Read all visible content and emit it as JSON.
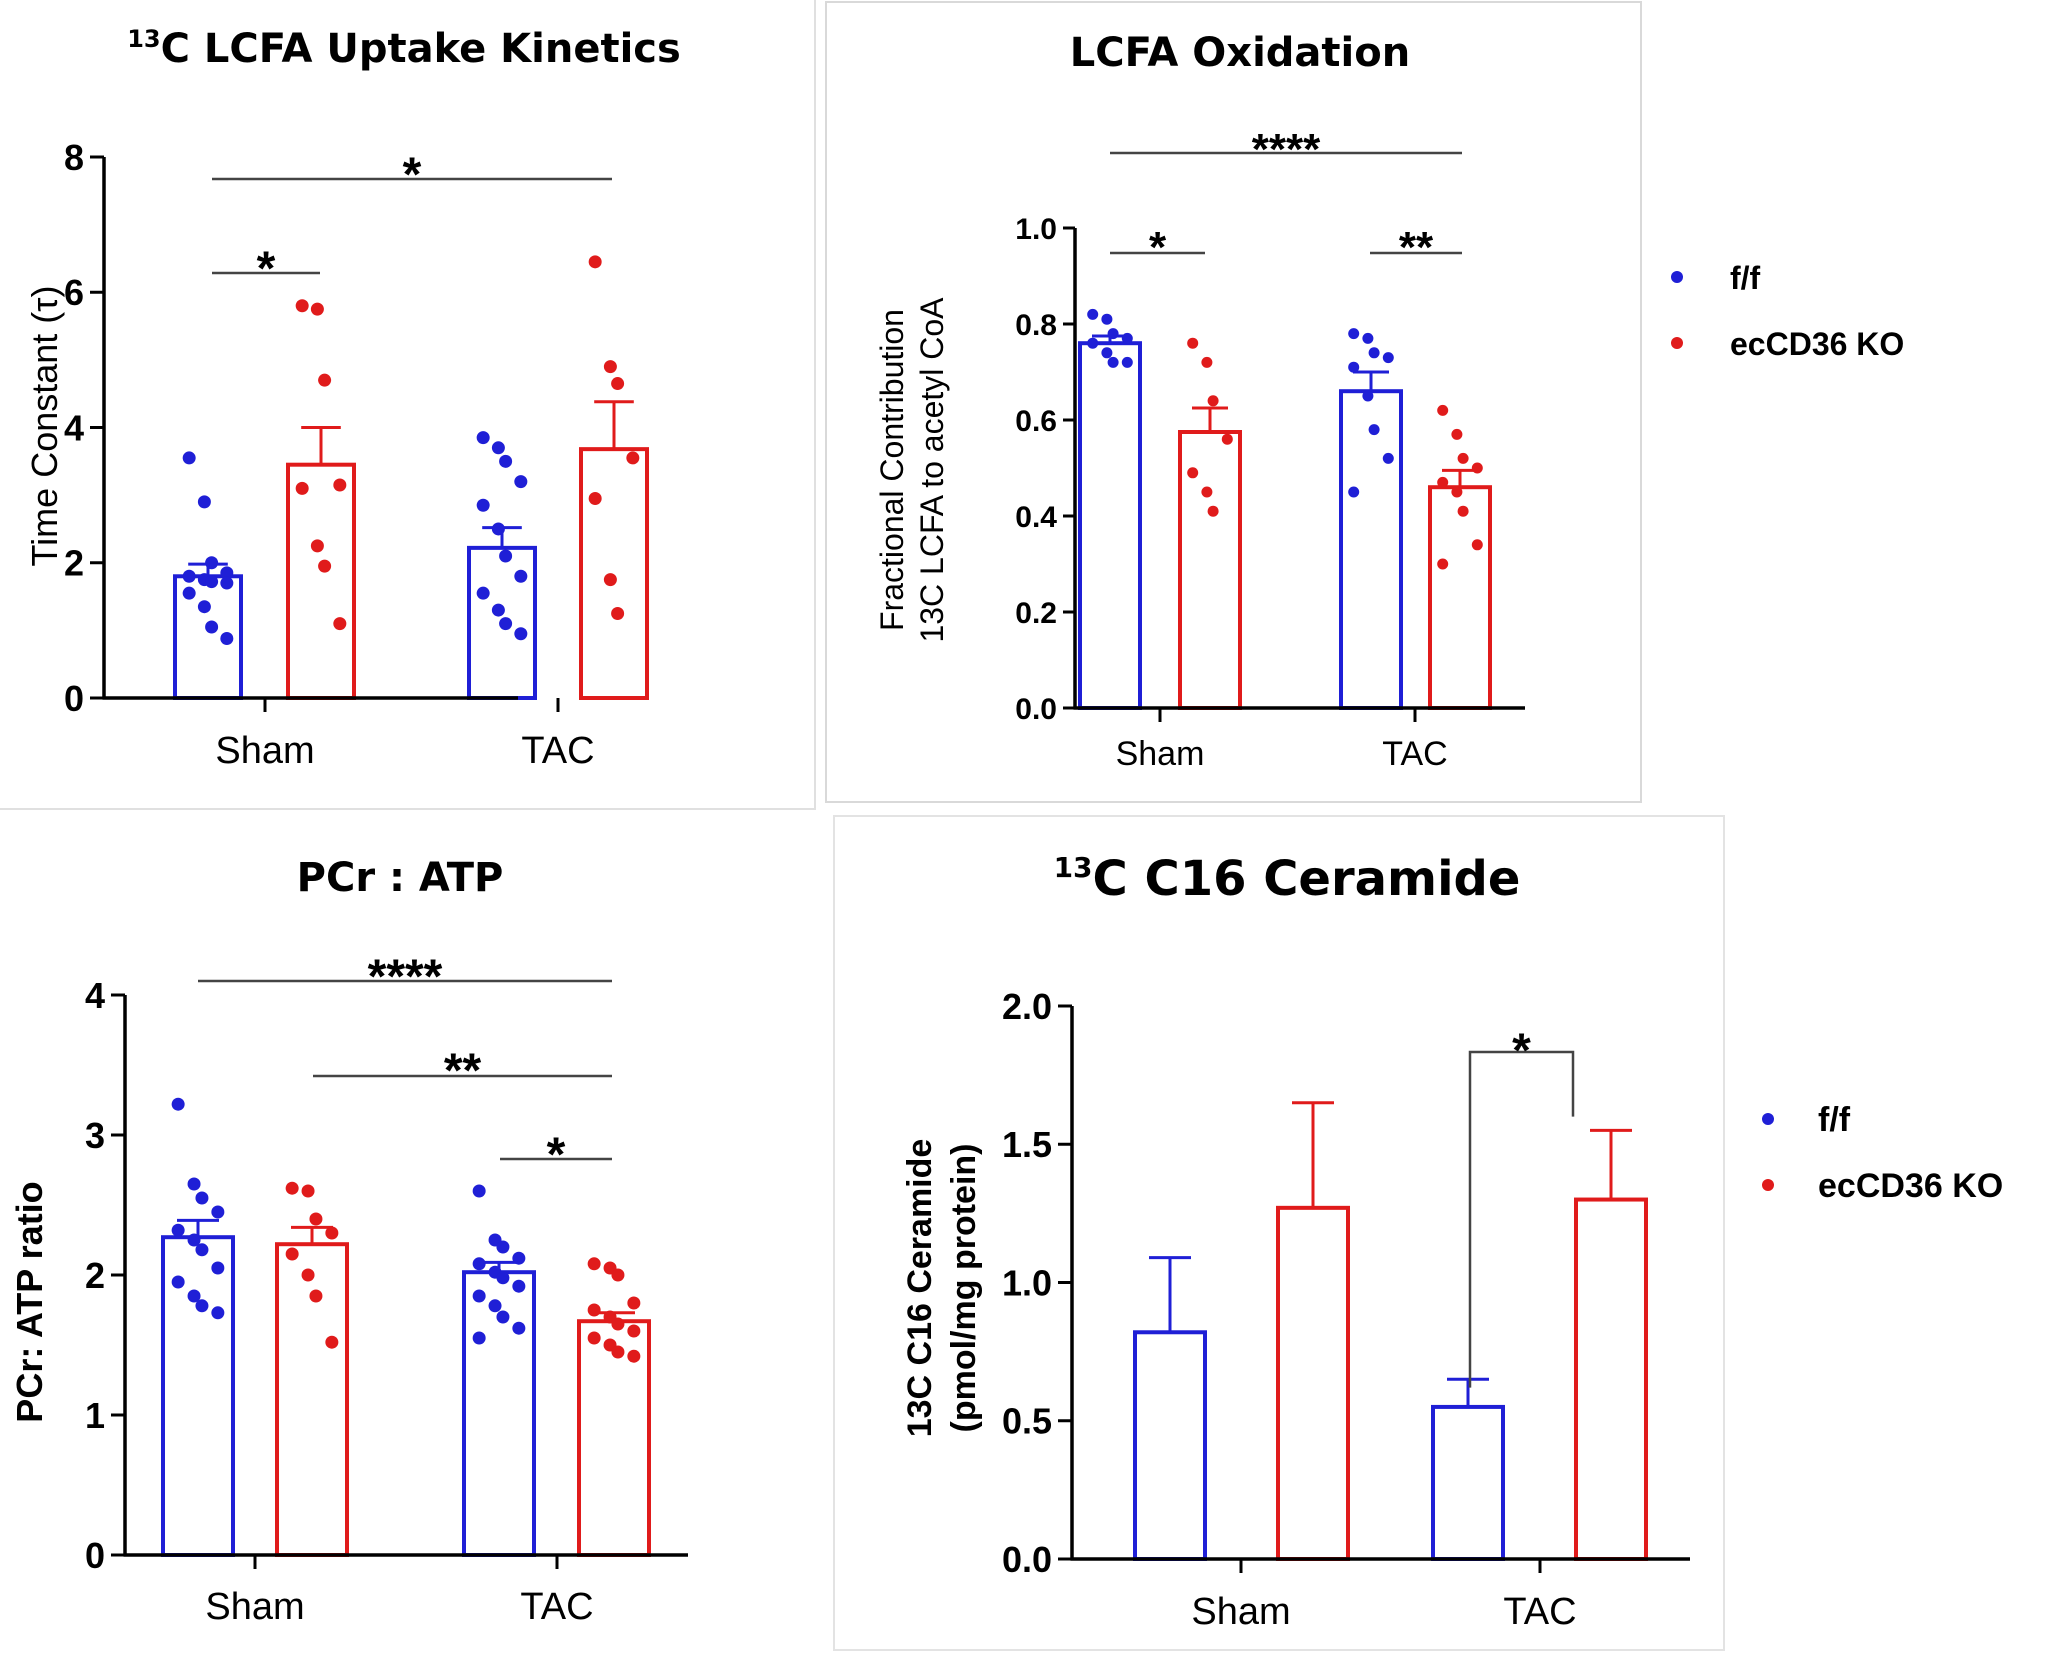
{
  "colors": {
    "ff": "#1f1fd6",
    "ko": "#e01b1b",
    "axis": "#000000",
    "sigline": "#444444",
    "border": "#d9d9d9"
  },
  "legend": {
    "ff": "f/f",
    "ko": "ecCD36 KO"
  },
  "chart_data": [
    {
      "type": "bar",
      "title_sup": "13",
      "title": "C LCFA Uptake Kinetics",
      "ylabel": "Time Constant (τ)",
      "ylabel_lines": [],
      "categories": [
        "Sham",
        "TAC"
      ],
      "ylim": [
        0,
        8
      ],
      "yticks": [
        0,
        2,
        4,
        6,
        8
      ],
      "ytick_labels": [
        "0",
        "2",
        "4",
        "6",
        "8"
      ],
      "series": [
        {
          "name": "f/f",
          "values": [
            1.8,
            2.22
          ],
          "errors": [
            0.18,
            0.3
          ],
          "points": [
            [
              3.55,
              2.9,
              2.0,
              1.85,
              1.8,
              1.75,
              1.72,
              1.7,
              1.55,
              1.35,
              1.05,
              0.88
            ],
            [
              3.85,
              3.7,
              3.5,
              3.2,
              2.85,
              2.5,
              2.1,
              1.8,
              1.55,
              1.3,
              1.1,
              0.95
            ]
          ]
        },
        {
          "name": "ecCD36 KO",
          "values": [
            3.45,
            3.68
          ],
          "errors": [
            0.55,
            0.7
          ],
          "points": [
            [
              5.8,
              5.75,
              4.7,
              3.15,
              3.1,
              2.25,
              1.95,
              1.1
            ],
            [
              6.45,
              4.9,
              4.65,
              3.55,
              2.95,
              1.75,
              1.25
            ]
          ]
        }
      ],
      "significance": [
        {
          "label": "*",
          "from": "Sham f/f",
          "to": "Sham ecCD36 KO"
        },
        {
          "label": "*",
          "from": "Sham f/f",
          "to": "TAC ecCD36 KO"
        }
      ]
    },
    {
      "type": "bar",
      "title": "LCFA Oxidation",
      "ylabel": "",
      "ylabel_lines": [
        "Fractional Contribution",
        "13C LCFA to acetyl CoA"
      ],
      "categories": [
        "Sham",
        "TAC"
      ],
      "ylim": [
        0,
        1.0
      ],
      "yticks": [
        0,
        0.2,
        0.4,
        0.6,
        0.8,
        1.0
      ],
      "ytick_labels": [
        "0.0",
        "0.2",
        "0.4",
        "0.6",
        "0.8",
        "1.0"
      ],
      "series": [
        {
          "name": "f/f",
          "values": [
            0.76,
            0.66
          ],
          "errors": [
            0.015,
            0.04
          ],
          "points": [
            [
              0.82,
              0.81,
              0.78,
              0.77,
              0.76,
              0.74,
              0.72,
              0.72
            ],
            [
              0.78,
              0.77,
              0.74,
              0.73,
              0.71,
              0.65,
              0.58,
              0.52,
              0.45
            ]
          ]
        },
        {
          "name": "ecCD36 KO",
          "values": [
            0.575,
            0.46
          ],
          "errors": [
            0.05,
            0.035
          ],
          "points": [
            [
              0.76,
              0.72,
              0.64,
              0.56,
              0.49,
              0.45,
              0.41
            ],
            [
              0.62,
              0.57,
              0.52,
              0.5,
              0.47,
              0.45,
              0.41,
              0.34,
              0.3
            ]
          ]
        }
      ],
      "significance": [
        {
          "label": "*",
          "from": "Sham f/f",
          "to": "Sham ecCD36 KO"
        },
        {
          "label": "**",
          "from": "TAC f/f",
          "to": "TAC ecCD36 KO"
        },
        {
          "label": "****",
          "from": "Sham f/f",
          "to": "TAC ecCD36 KO"
        }
      ]
    },
    {
      "type": "bar",
      "title": "PCr : ATP",
      "ylabel": "PCr: ATP ratio",
      "ylabel_lines": [],
      "categories": [
        "Sham",
        "TAC"
      ],
      "ylim": [
        0,
        4
      ],
      "yticks": [
        0,
        1,
        2,
        3,
        4
      ],
      "ytick_labels": [
        "0",
        "1",
        "2",
        "3",
        "4"
      ],
      "series": [
        {
          "name": "f/f",
          "values": [
            2.27,
            2.02
          ],
          "errors": [
            0.12,
            0.07
          ],
          "points": [
            [
              3.22,
              2.65,
              2.55,
              2.45,
              2.32,
              2.25,
              2.18,
              2.05,
              1.95,
              1.85,
              1.78,
              1.73
            ],
            [
              2.6,
              2.25,
              2.2,
              2.12,
              2.08,
              2.02,
              1.98,
              1.92,
              1.85,
              1.78,
              1.7,
              1.62,
              1.55
            ]
          ]
        },
        {
          "name": "ecCD36 KO",
          "values": [
            2.22,
            1.67
          ],
          "errors": [
            0.12,
            0.06
          ],
          "points": [
            [
              2.62,
              2.6,
              2.4,
              2.3,
              2.15,
              2.0,
              1.85,
              1.52
            ],
            [
              2.08,
              2.05,
              2.0,
              1.8,
              1.75,
              1.7,
              1.65,
              1.6,
              1.55,
              1.5,
              1.45,
              1.42
            ]
          ]
        }
      ],
      "significance": [
        {
          "label": "*",
          "from": "TAC f/f",
          "to": "TAC ecCD36 KO"
        },
        {
          "label": "**",
          "from": "Sham ecCD36 KO",
          "to": "TAC ecCD36 KO"
        },
        {
          "label": "****",
          "from": "Sham f/f",
          "to": "TAC ecCD36 KO"
        }
      ]
    },
    {
      "type": "bar",
      "title_sup": "13",
      "title": "C C16 Ceramide",
      "ylabel": "",
      "ylabel_lines": [
        "13C C16 Ceramide",
        "(pmol/mg protein)"
      ],
      "categories": [
        "Sham",
        "TAC"
      ],
      "ylim": [
        0,
        2.0
      ],
      "yticks": [
        0,
        0.5,
        1.0,
        1.5,
        2.0
      ],
      "ytick_labels": [
        "0.0",
        "0.5",
        "1.0",
        "1.5",
        "2.0"
      ],
      "series": [
        {
          "name": "f/f",
          "values": [
            0.82,
            0.55
          ],
          "errors": [
            0.27,
            0.1
          ],
          "points": [
            [],
            []
          ]
        },
        {
          "name": "ecCD36 KO",
          "values": [
            1.27,
            1.3
          ],
          "errors": [
            0.38,
            0.25
          ],
          "points": [
            [],
            []
          ]
        }
      ],
      "significance": [
        {
          "label": "*",
          "from": "TAC f/f",
          "to": "TAC ecCD36 KO"
        }
      ]
    }
  ]
}
